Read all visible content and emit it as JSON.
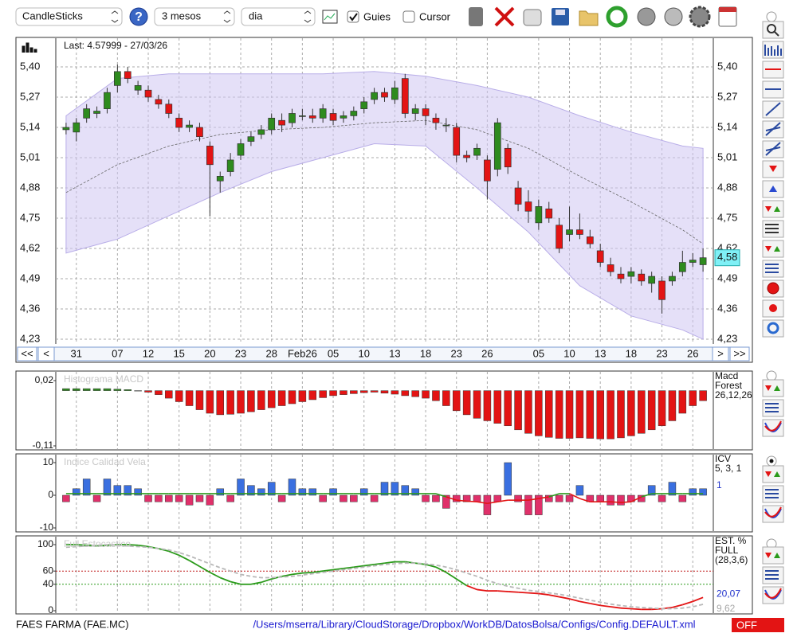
{
  "toolbar": {
    "chart_type": "CandleSticks",
    "help": "?",
    "period": "3 mesos",
    "interval": "dia",
    "guides": "Guies",
    "cursor": "Cursor"
  },
  "chart_data": [
    {
      "type": "candlestick",
      "title": "Last: 4.57999 - 27/03/26",
      "open": [
        5.13,
        5.12,
        5.18,
        5.2,
        5.22,
        5.32,
        5.38,
        5.3,
        5.3,
        5.26,
        5.24,
        5.18,
        5.14,
        5.14,
        5.06,
        4.91,
        4.95,
        5.02,
        5.08,
        5.11,
        5.13,
        5.17,
        5.16,
        5.19,
        5.19,
        5.18,
        5.2,
        5.18,
        5.19,
        5.22,
        5.26,
        5.29,
        5.26,
        5.35,
        5.2,
        5.22,
        5.18,
        5.15,
        5.14,
        5.02,
        5.02,
        5.0,
        4.96,
        5.05,
        4.88,
        4.82,
        4.73,
        4.79,
        4.72,
        4.68,
        4.7,
        4.67,
        4.61,
        4.55,
        4.51,
        4.5,
        4.51,
        4.47,
        4.48,
        4.48,
        4.52,
        4.56,
        4.55
      ],
      "high": [
        5.16,
        5.18,
        5.24,
        5.23,
        5.31,
        5.41,
        5.4,
        5.34,
        5.32,
        5.28,
        5.26,
        5.2,
        5.17,
        5.16,
        5.08,
        4.95,
        5.03,
        5.09,
        5.12,
        5.15,
        5.2,
        5.2,
        5.22,
        5.22,
        5.22,
        5.24,
        5.22,
        5.21,
        5.23,
        5.27,
        5.31,
        5.31,
        5.34,
        5.37,
        5.24,
        5.24,
        5.2,
        5.18,
        5.16,
        5.04,
        5.07,
        5.02,
        5.18,
        5.07,
        4.91,
        4.87,
        4.83,
        4.82,
        4.75,
        4.8,
        4.77,
        4.7,
        4.64,
        4.58,
        4.54,
        4.54,
        4.53,
        4.52,
        4.5,
        4.52,
        4.61,
        4.6,
        4.62
      ],
      "low": [
        5.11,
        5.08,
        5.16,
        5.18,
        5.2,
        5.29,
        5.33,
        5.28,
        5.25,
        5.22,
        5.18,
        5.12,
        5.12,
        5.08,
        4.76,
        4.86,
        4.93,
        5.0,
        5.06,
        5.09,
        5.11,
        5.12,
        5.14,
        5.17,
        5.16,
        5.16,
        5.15,
        5.16,
        5.17,
        5.2,
        5.24,
        5.25,
        5.24,
        5.18,
        5.17,
        5.15,
        5.13,
        5.12,
        4.99,
        4.99,
        5.0,
        4.83,
        4.93,
        4.94,
        4.78,
        4.73,
        4.7,
        4.73,
        4.6,
        4.65,
        4.66,
        4.62,
        4.54,
        4.5,
        4.47,
        4.47,
        4.46,
        4.43,
        4.34,
        4.46,
        4.5,
        4.54,
        4.52
      ],
      "close": [
        5.14,
        5.16,
        5.22,
        5.21,
        5.29,
        5.38,
        5.35,
        5.32,
        5.27,
        5.24,
        5.2,
        5.14,
        5.15,
        5.1,
        4.98,
        4.93,
        5.0,
        5.07,
        5.1,
        5.13,
        5.18,
        5.15,
        5.2,
        5.19,
        5.18,
        5.22,
        5.17,
        5.19,
        5.21,
        5.25,
        5.29,
        5.27,
        5.31,
        5.2,
        5.22,
        5.19,
        5.16,
        5.15,
        5.02,
        5.01,
        5.05,
        4.91,
        5.16,
        4.97,
        4.81,
        4.78,
        4.8,
        4.75,
        4.62,
        4.7,
        4.68,
        4.64,
        4.56,
        4.52,
        4.49,
        4.52,
        4.48,
        4.5,
        4.4,
        4.5,
        4.56,
        4.57,
        4.58
      ],
      "colors": {
        "up": "#2e8b1e",
        "down": "#e31414"
      },
      "band": {
        "index": [
          0,
          5,
          10,
          15,
          20,
          25,
          30,
          35,
          40,
          45,
          50,
          55,
          60,
          62
        ],
        "upper": [
          5.19,
          5.35,
          5.37,
          5.37,
          5.37,
          5.37,
          5.38,
          5.36,
          5.32,
          5.27,
          5.19,
          5.12,
          5.06,
          5.05
        ],
        "lower": [
          4.6,
          4.66,
          4.76,
          4.86,
          4.95,
          5.01,
          5.07,
          5.06,
          4.88,
          4.69,
          4.46,
          4.33,
          4.27,
          4.23
        ],
        "middle": [
          4.86,
          4.98,
          5.06,
          5.11,
          5.13,
          5.14,
          5.16,
          5.17,
          5.13,
          5.05,
          4.93,
          4.82,
          4.7,
          4.64
        ],
        "color": "#cfc6f3"
      },
      "xlim": [
        -1,
        63
      ],
      "ylim": [
        4.23,
        5.4
      ],
      "yticks": [
        {
          "value": 4.23,
          "label": "4,23"
        },
        {
          "value": 4.36,
          "label": "4,36"
        },
        {
          "value": 4.49,
          "label": "4,49"
        },
        {
          "value": 4.62,
          "label": "4,62"
        },
        {
          "value": 4.75,
          "label": "4,75"
        },
        {
          "value": 4.88,
          "label": "4,88"
        },
        {
          "value": 5.01,
          "label": "5,01"
        },
        {
          "value": 5.14,
          "label": "5,14"
        },
        {
          "value": 5.27,
          "label": "5,27"
        },
        {
          "value": 5.4,
          "label": "5,40"
        }
      ],
      "xticks": [
        {
          "value": 1,
          "label": "31"
        },
        {
          "value": 5,
          "label": "07"
        },
        {
          "value": 8,
          "label": "12"
        },
        {
          "value": 11,
          "label": "15"
        },
        {
          "value": 14,
          "label": "20"
        },
        {
          "value": 17,
          "label": "23"
        },
        {
          "value": 20,
          "label": "28"
        },
        {
          "value": 23,
          "label": "Feb26"
        },
        {
          "value": 26,
          "label": "05"
        },
        {
          "value": 29,
          "label": "10"
        },
        {
          "value": 32,
          "label": "13"
        },
        {
          "value": 35,
          "label": "18"
        },
        {
          "value": 38,
          "label": "23"
        },
        {
          "value": 41,
          "label": "26"
        },
        {
          "value": 46,
          "label": "05"
        },
        {
          "value": 49,
          "label": "10"
        },
        {
          "value": 52,
          "label": "13"
        },
        {
          "value": 55,
          "label": "18"
        },
        {
          "value": 58,
          "label": "23"
        },
        {
          "value": 61,
          "label": "26"
        }
      ],
      "last_value": {
        "value": 4.58,
        "label": "4,58"
      },
      "grid": true,
      "nav": {
        "first": "<<",
        "prev": "<",
        "next": ">",
        "last": ">>"
      }
    },
    {
      "type": "bar",
      "title": "Histograma MACD",
      "legend": [
        "Macd",
        "Forest",
        "26,12,26"
      ],
      "values": [
        0.004,
        0.004,
        0.004,
        0.004,
        0.004,
        0.003,
        0.002,
        0,
        -0.003,
        -0.008,
        -0.015,
        -0.022,
        -0.03,
        -0.038,
        -0.045,
        -0.048,
        -0.047,
        -0.045,
        -0.042,
        -0.038,
        -0.034,
        -0.03,
        -0.026,
        -0.022,
        -0.018,
        -0.014,
        -0.01,
        -0.008,
        -0.006,
        -0.004,
        -0.003,
        -0.005,
        -0.007,
        -0.01,
        -0.012,
        -0.015,
        -0.02,
        -0.03,
        -0.04,
        -0.048,
        -0.055,
        -0.06,
        -0.065,
        -0.07,
        -0.078,
        -0.085,
        -0.09,
        -0.093,
        -0.095,
        -0.095,
        -0.094,
        -0.095,
        -0.096,
        -0.096,
        -0.094,
        -0.09,
        -0.085,
        -0.078,
        -0.07,
        -0.06,
        -0.045,
        -0.03,
        -0.02
      ],
      "colors": {
        "positive": "#2e8b1e",
        "negative": "#e31414"
      },
      "xlim": [
        -1,
        63
      ],
      "ylim": [
        -0.11,
        0.02
      ],
      "yticks": [
        {
          "value": -0.11,
          "label": "-0,11"
        },
        {
          "value": 0.02,
          "label": "0,02"
        }
      ]
    },
    {
      "type": "bar",
      "title": "Indice Calidad Vela",
      "legend": [
        "ICV",
        "5, 3, 1"
      ],
      "current_value": 1,
      "values": [
        -2,
        2,
        5,
        -2,
        5,
        3,
        3,
        2,
        -2,
        -2,
        -2,
        -2,
        -3,
        -2,
        -3,
        2,
        -2,
        5,
        3,
        2,
        4,
        -2,
        5,
        2,
        2,
        -2,
        2,
        -2,
        -2,
        2,
        -2,
        4,
        4,
        3,
        2,
        -2,
        -2,
        -4,
        -2,
        -2,
        -2,
        -6,
        -2,
        10,
        -2,
        -6,
        -6,
        -2,
        -2,
        -2,
        3,
        -2,
        -2,
        -3,
        -3,
        -2,
        -2,
        3,
        -2,
        4,
        -2,
        2,
        2
      ],
      "line": [
        0.5,
        0.5,
        0.5,
        0.5,
        0.5,
        0.5,
        0.5,
        0.5,
        0.5,
        0.5,
        0.5,
        0.5,
        0.5,
        0.5,
        0.5,
        0.5,
        0.5,
        0.5,
        0.5,
        0.5,
        0.5,
        0.5,
        0.5,
        0.5,
        0.5,
        0.5,
        0.5,
        0.5,
        0.5,
        0.5,
        0.5,
        0.5,
        0.5,
        0.5,
        0.5,
        0.5,
        0.5,
        -0.5,
        -1.5,
        -1.8,
        -2,
        -2.5,
        -2,
        -1.5,
        -1.5,
        -1.5,
        -1,
        -0.5,
        0.5,
        0.5,
        -1,
        -2,
        -2,
        -2,
        -2.2,
        -2,
        -0.5,
        0.5,
        0.5,
        0.5,
        0.5,
        0.5,
        0.5
      ],
      "colors": {
        "positive": "#3a6fe0",
        "negative": "#e0306a",
        "line_positive": "#2a9a1a",
        "line_negative": "#e31414",
        "current": "#2233cc"
      },
      "xlim": [
        -1,
        63
      ],
      "ylim": [
        -10,
        10
      ],
      "yticks": [
        -10,
        0,
        10
      ]
    },
    {
      "type": "line",
      "title": "Full Estocastico",
      "legend": [
        "EST. %",
        "FULL",
        "(28,3,6)"
      ],
      "series": [
        {
          "color": "#2a9a1a",
          "low_color": "#e31414",
          "label_color": "#2233cc",
          "value_label": "20,07",
          "values": [
            100,
            100,
            99,
            98,
            99,
            100,
            100,
            99,
            97,
            94,
            90,
            84,
            76,
            67,
            58,
            50,
            44,
            40,
            40,
            43,
            48,
            52,
            55,
            57,
            58,
            60,
            62,
            64,
            66,
            68,
            70,
            72,
            74,
            74,
            72,
            70,
            66,
            58,
            48,
            38,
            32,
            30,
            30,
            29,
            28,
            27,
            26,
            24,
            21,
            18,
            14,
            11,
            8,
            6,
            4,
            3,
            2,
            2,
            3,
            5,
            9,
            14,
            20.07
          ]
        },
        {
          "color": "#b8b8b8",
          "dash": true,
          "label_color": "#a8a8a8",
          "value_label": "9,62",
          "values": [
            96,
            97,
            98,
            99,
            100,
            99,
            98,
            97,
            96,
            94,
            92,
            88,
            83,
            77,
            71,
            65,
            60,
            55,
            52,
            50,
            50,
            51,
            52,
            54,
            56,
            58,
            60,
            62,
            64,
            66,
            68,
            70,
            71,
            72,
            72,
            71,
            69,
            66,
            62,
            57,
            52,
            46,
            41,
            37,
            34,
            31,
            29,
            27,
            25,
            22,
            19,
            16,
            13,
            10,
            8,
            6,
            5,
            4,
            3,
            3,
            4,
            6,
            9.62
          ]
        }
      ],
      "levels": [
        {
          "value": 60,
          "color": "#c01818"
        },
        {
          "value": 40,
          "color": "#2a9a1a"
        }
      ],
      "xlim": [
        -1,
        63
      ],
      "ylim": [
        0,
        100
      ],
      "yticks": [
        0,
        40,
        60,
        100
      ]
    }
  ],
  "footer": {
    "name": "FAES FARMA (FAE.MC)",
    "path": "/Users/mserra/Library/CloudStorage/Dropbox/WorkDB/DatosBolsa/Configs/Config.DEFAULT.xml",
    "status": "OFF"
  }
}
